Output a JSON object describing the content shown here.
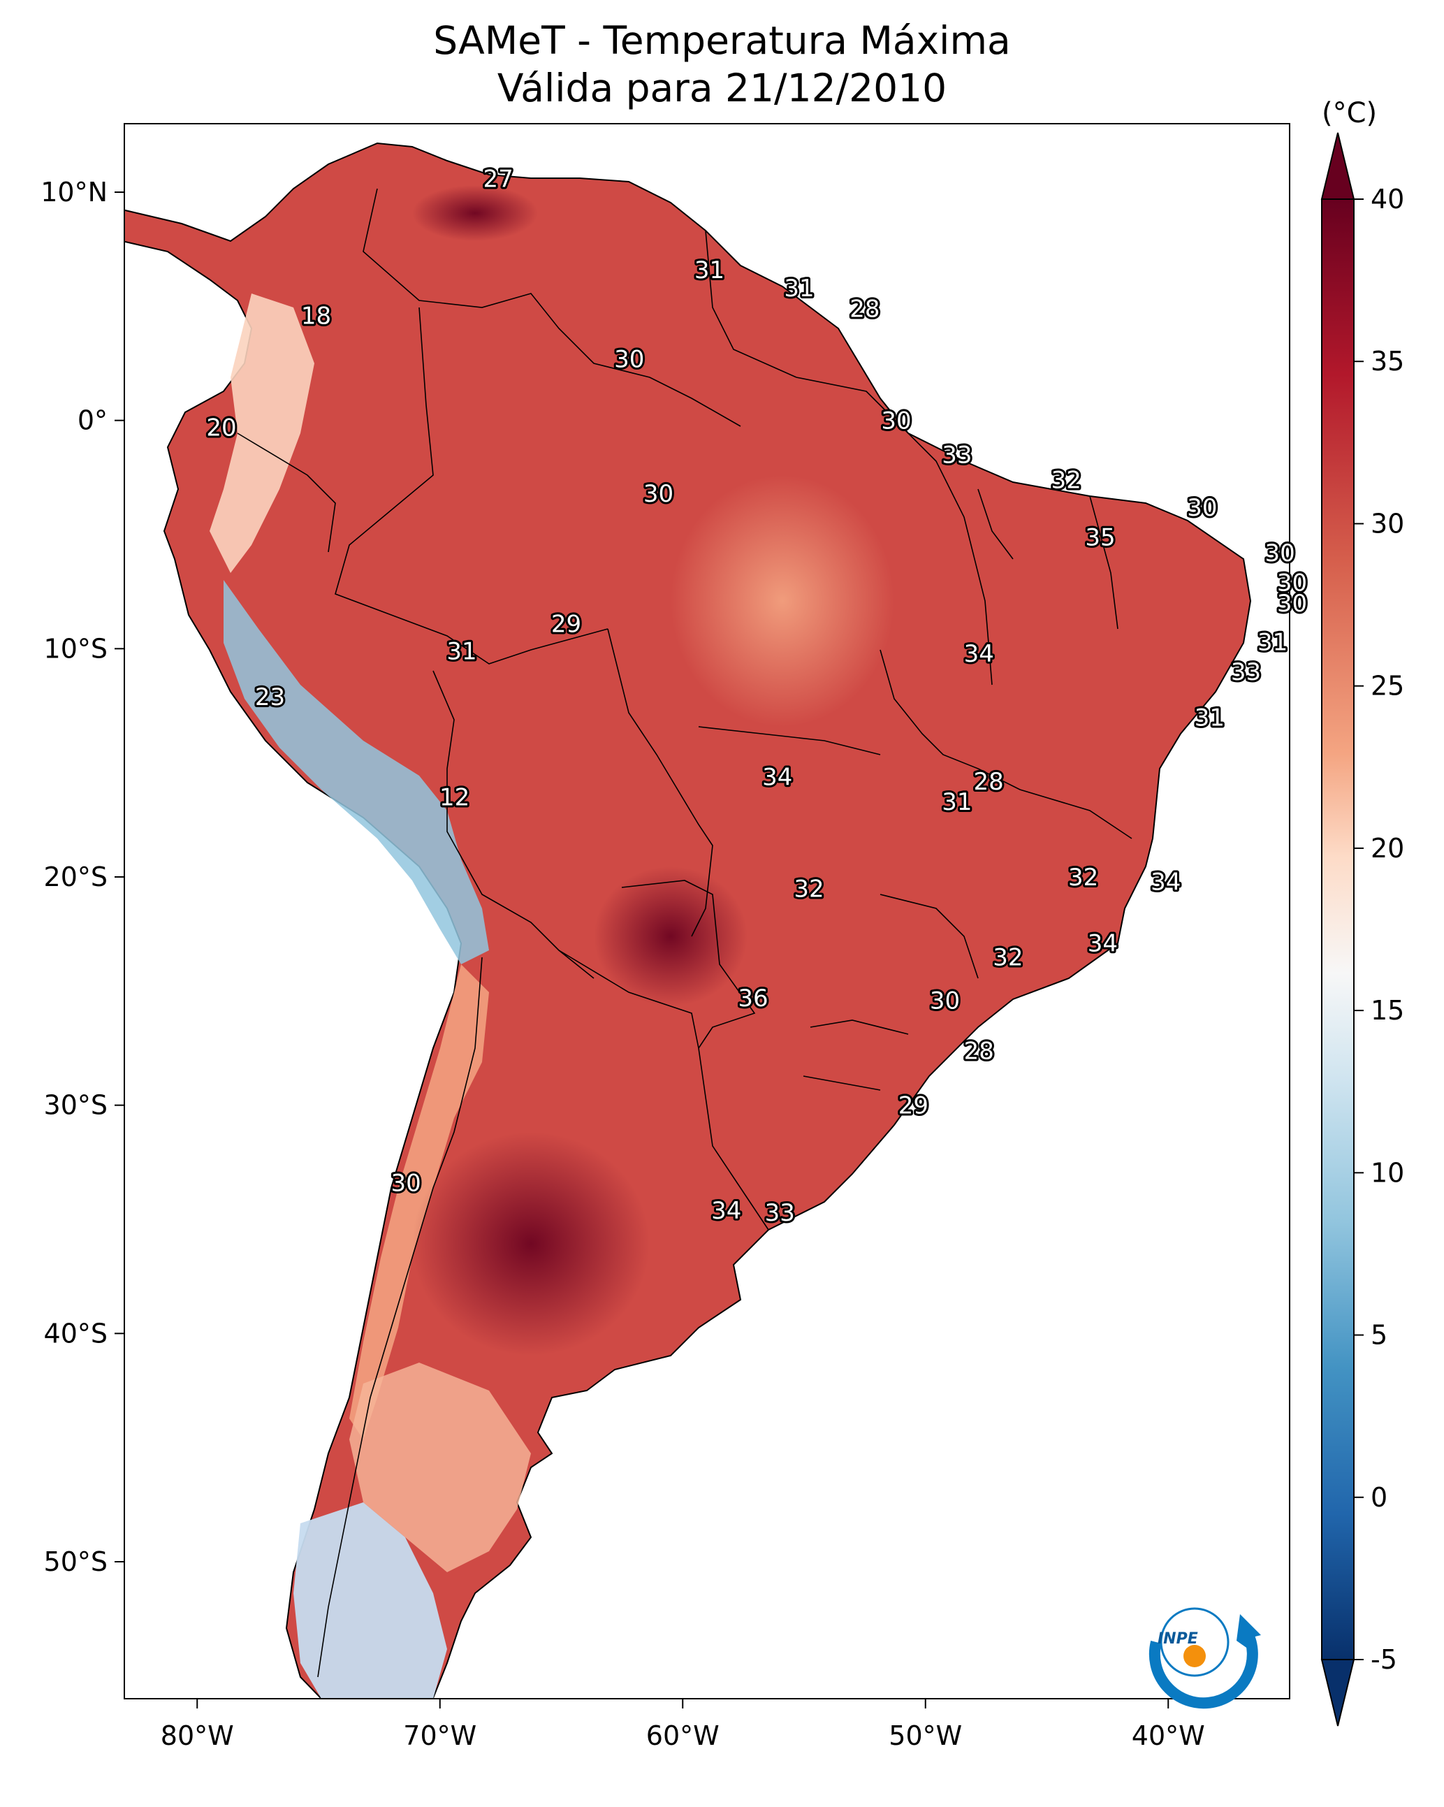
{
  "title": {
    "line1": "SAMeT - Temperatura Máxima",
    "line2": "Válida para 21/12/2010"
  },
  "axes": {
    "lon_ticks": [
      "80°W",
      "70°W",
      "60°W",
      "50°W",
      "40°W"
    ],
    "lat_ticks": [
      "10°N",
      "0°",
      "10°S",
      "20°S",
      "30°S",
      "40°S",
      "50°S"
    ],
    "lon_range": [
      -83,
      -35
    ],
    "lat_range": [
      -56,
      13
    ]
  },
  "colorbar": {
    "unit": "(°C)",
    "ticks": [
      "40",
      "35",
      "30",
      "25",
      "20",
      "15",
      "10",
      "5",
      "0",
      "-5"
    ],
    "min": -5,
    "max": 40,
    "extend": "both",
    "colors": [
      "#08306b",
      "#2166ac",
      "#4393c3",
      "#92c5de",
      "#d1e5f0",
      "#f7f7f7",
      "#fddbc7",
      "#f4a582",
      "#d6604d",
      "#b2182b",
      "#67001f"
    ]
  },
  "station_labels": [
    {
      "value": "27",
      "lon": -67.6,
      "lat": 10.6
    },
    {
      "value": "31",
      "lon": -58.9,
      "lat": 6.6
    },
    {
      "value": "31",
      "lon": -55.2,
      "lat": 5.8
    },
    {
      "value": "28",
      "lon": -52.5,
      "lat": 4.9
    },
    {
      "value": "18",
      "lon": -75.1,
      "lat": 4.6
    },
    {
      "value": "30",
      "lon": -62.2,
      "lat": 2.7
    },
    {
      "value": "20",
      "lon": -79.0,
      "lat": -0.3
    },
    {
      "value": "30",
      "lon": -51.2,
      "lat": 0.0
    },
    {
      "value": "33",
      "lon": -48.7,
      "lat": -1.5
    },
    {
      "value": "32",
      "lon": -44.2,
      "lat": -2.6
    },
    {
      "value": "30",
      "lon": -61.0,
      "lat": -3.2
    },
    {
      "value": "30",
      "lon": -38.6,
      "lat": -3.8
    },
    {
      "value": "35",
      "lon": -42.8,
      "lat": -5.1
    },
    {
      "value": "30",
      "lon": -35.4,
      "lat": -5.8
    },
    {
      "value": "30",
      "lon": -34.9,
      "lat": -7.1
    },
    {
      "value": "30",
      "lon": -34.9,
      "lat": -8.0
    },
    {
      "value": "29",
      "lon": -64.8,
      "lat": -8.9
    },
    {
      "value": "31",
      "lon": -35.7,
      "lat": -9.7
    },
    {
      "value": "31",
      "lon": -69.1,
      "lat": -10.1
    },
    {
      "value": "34",
      "lon": -47.8,
      "lat": -10.2
    },
    {
      "value": "33",
      "lon": -36.8,
      "lat": -11.0
    },
    {
      "value": "23",
      "lon": -77.0,
      "lat": -12.1
    },
    {
      "value": "31",
      "lon": -38.3,
      "lat": -13.0
    },
    {
      "value": "34",
      "lon": -56.1,
      "lat": -15.6
    },
    {
      "value": "28",
      "lon": -47.4,
      "lat": -15.8
    },
    {
      "value": "12",
      "lon": -69.4,
      "lat": -16.5
    },
    {
      "value": "31",
      "lon": -48.7,
      "lat": -16.7
    },
    {
      "value": "32",
      "lon": -43.5,
      "lat": -20.0
    },
    {
      "value": "34",
      "lon": -40.1,
      "lat": -20.2
    },
    {
      "value": "32",
      "lon": -54.8,
      "lat": -20.5
    },
    {
      "value": "34",
      "lon": -42.7,
      "lat": -22.9
    },
    {
      "value": "32",
      "lon": -46.6,
      "lat": -23.5
    },
    {
      "value": "30",
      "lon": -49.2,
      "lat": -25.4
    },
    {
      "value": "36",
      "lon": -57.1,
      "lat": -25.3
    },
    {
      "value": "28",
      "lon": -47.8,
      "lat": -27.6
    },
    {
      "value": "29",
      "lon": -50.5,
      "lat": -30.0
    },
    {
      "value": "30",
      "lon": -71.4,
      "lat": -33.4
    },
    {
      "value": "34",
      "lon": -58.2,
      "lat": -34.6
    },
    {
      "value": "33",
      "lon": -56.0,
      "lat": -34.7
    }
  ],
  "logo": {
    "text": "INPE"
  }
}
